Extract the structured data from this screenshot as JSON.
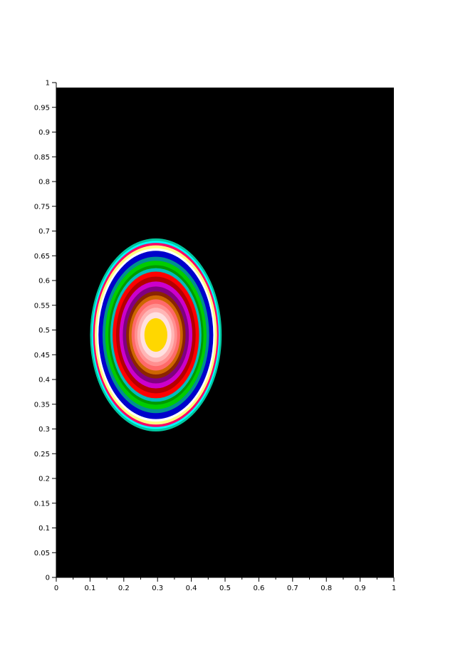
{
  "chart_data": {
    "type": "heatmap",
    "title": "",
    "xlabel": "",
    "ylabel": "",
    "xlim": [
      0,
      1
    ],
    "ylim": [
      0,
      1
    ],
    "grid": false,
    "legend": "none",
    "background_color": "#000000",
    "x_ticks": [
      {
        "value": 0,
        "label": "0"
      },
      {
        "value": 0.1,
        "label": "0.1"
      },
      {
        "value": 0.2,
        "label": "0.2"
      },
      {
        "value": 0.3,
        "label": "0.3"
      },
      {
        "value": 0.4,
        "label": "0.4"
      },
      {
        "value": 0.5,
        "label": "0.5"
      },
      {
        "value": 0.6,
        "label": "0.6"
      },
      {
        "value": 0.7,
        "label": "0.7"
      },
      {
        "value": 0.8,
        "label": "0.8"
      },
      {
        "value": 0.9,
        "label": "0.9"
      },
      {
        "value": 1,
        "label": "1"
      }
    ],
    "y_ticks": [
      {
        "value": 0,
        "label": "0"
      },
      {
        "value": 0.05,
        "label": "0.05"
      },
      {
        "value": 0.1,
        "label": "0.1"
      },
      {
        "value": 0.15,
        "label": "0.15"
      },
      {
        "value": 0.2,
        "label": "0.2"
      },
      {
        "value": 0.25,
        "label": "0.25"
      },
      {
        "value": 0.3,
        "label": "0.3"
      },
      {
        "value": 0.35,
        "label": "0.35"
      },
      {
        "value": 0.4,
        "label": "0.4"
      },
      {
        "value": 0.45,
        "label": "0.45"
      },
      {
        "value": 0.5,
        "label": "0.5"
      },
      {
        "value": 0.55,
        "label": "0.55"
      },
      {
        "value": 0.6,
        "label": "0.6"
      },
      {
        "value": 0.65,
        "label": "0.65"
      },
      {
        "value": 0.7,
        "label": "0.7"
      },
      {
        "value": 0.75,
        "label": "0.75"
      },
      {
        "value": 0.8,
        "label": "0.8"
      },
      {
        "value": 0.85,
        "label": "0.85"
      },
      {
        "value": 0.9,
        "label": "0.9"
      },
      {
        "value": 0.95,
        "label": "0.95"
      },
      {
        "value": 1,
        "label": "1"
      }
    ],
    "center": {
      "x": 0.295,
      "y": 0.49
    },
    "contour_bands": [
      {
        "rx": 0.195,
        "ry": 0.195,
        "color": "#00c8a0"
      },
      {
        "rx": 0.19,
        "ry": 0.19,
        "color": "#00ffff"
      },
      {
        "rx": 0.186,
        "ry": 0.186,
        "color": "#ff0066"
      },
      {
        "rx": 0.181,
        "ry": 0.181,
        "color": "#ffff80"
      },
      {
        "rx": 0.175,
        "ry": 0.175,
        "color": "#ffffff"
      },
      {
        "rx": 0.17,
        "ry": 0.17,
        "color": "#0000cc"
      },
      {
        "rx": 0.158,
        "ry": 0.158,
        "color": "#009090"
      },
      {
        "rx": 0.15,
        "ry": 0.15,
        "color": "#00cc00"
      },
      {
        "rx": 0.141,
        "ry": 0.141,
        "color": "#009900"
      },
      {
        "rx": 0.135,
        "ry": 0.135,
        "color": "#00bcbc"
      },
      {
        "rx": 0.128,
        "ry": 0.128,
        "color": "#ff0000"
      },
      {
        "rx": 0.118,
        "ry": 0.118,
        "color": "#b40000"
      },
      {
        "rx": 0.108,
        "ry": 0.108,
        "color": "#cc00cc"
      },
      {
        "rx": 0.098,
        "ry": 0.098,
        "color": "#800080"
      },
      {
        "rx": 0.088,
        "ry": 0.088,
        "color": "#8b2500"
      },
      {
        "rx": 0.08,
        "ry": 0.08,
        "color": "#cd6600"
      },
      {
        "rx": 0.072,
        "ry": 0.072,
        "color": "#ff6a6a"
      },
      {
        "rx": 0.063,
        "ry": 0.063,
        "color": "#ff9090"
      },
      {
        "rx": 0.055,
        "ry": 0.055,
        "color": "#ffb6b6"
      },
      {
        "rx": 0.046,
        "ry": 0.046,
        "color": "#ffe0e0"
      },
      {
        "rx": 0.034,
        "ry": 0.034,
        "color": "#ffd700"
      }
    ]
  }
}
